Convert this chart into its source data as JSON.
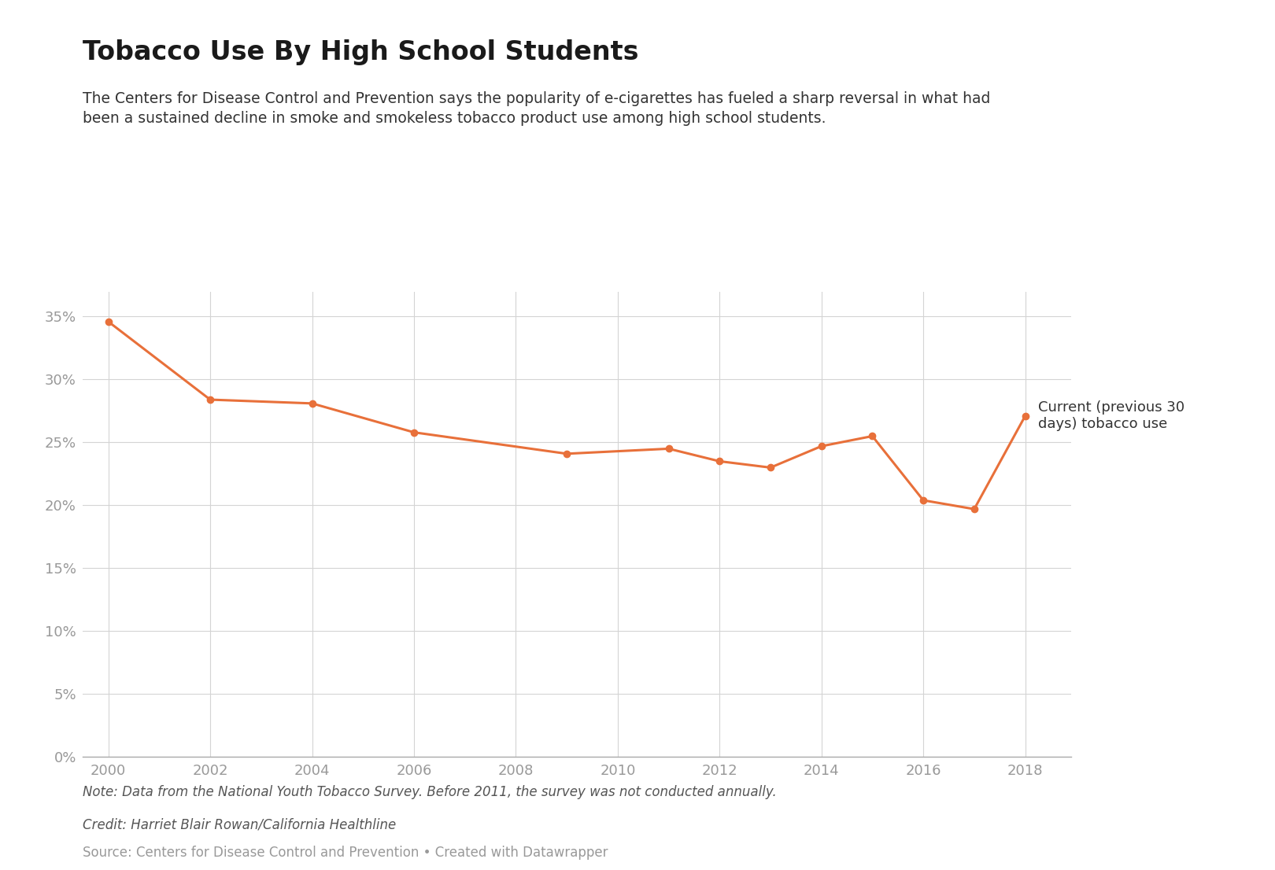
{
  "title": "Tobacco Use By High School Students",
  "subtitle": "The Centers for Disease Control and Prevention says the popularity of e-cigarettes has fueled a sharp reversal in what had\nbeen a sustained decline in smoke and smokeless tobacco product use among high school students.",
  "x_values": [
    2000,
    2002,
    2004,
    2006,
    2009,
    2011,
    2012,
    2013,
    2014,
    2015,
    2016,
    2017,
    2018
  ],
  "y_values": [
    0.346,
    0.284,
    0.281,
    0.258,
    0.241,
    0.245,
    0.235,
    0.23,
    0.247,
    0.255,
    0.204,
    0.197,
    0.271
  ],
  "line_color": "#e8703a",
  "marker_color": "#e8703a",
  "marker_size": 6,
  "line_width": 2.2,
  "xlim": [
    1999.5,
    2018.9
  ],
  "ylim": [
    0,
    0.37
  ],
  "yticks": [
    0,
    0.05,
    0.1,
    0.15,
    0.2,
    0.25,
    0.3,
    0.35
  ],
  "ytick_labels": [
    "0%",
    "5%",
    "10%",
    "15%",
    "20%",
    "25%",
    "30%",
    "35%"
  ],
  "xticks": [
    2000,
    2002,
    2004,
    2006,
    2008,
    2010,
    2012,
    2014,
    2016,
    2018
  ],
  "xtick_labels": [
    "2000",
    "2002",
    "2004",
    "2006",
    "2008",
    "2010",
    "2012",
    "2014",
    "2016",
    "2018"
  ],
  "legend_label": "Current (previous 30\ndays) tobacco use",
  "note_text": "Note: Data from the National Youth Tobacco Survey. Before 2011, the survey was not conducted annually.",
  "credit_text": "Credit: Harriet Blair Rowan/California Healthline",
  "source_text": "Source: Centers for Disease Control and Prevention • Created with Datawrapper",
  "background_color": "#ffffff",
  "grid_color": "#d4d4d4",
  "tick_color": "#999999",
  "title_color": "#1a1a1a",
  "subtitle_color": "#333333",
  "note_color": "#555555",
  "source_color": "#999999"
}
